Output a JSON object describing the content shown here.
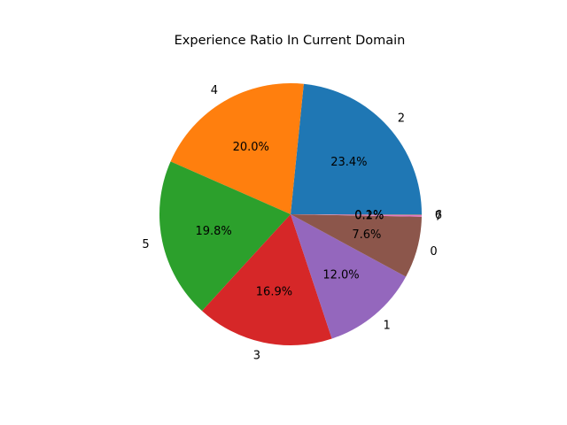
{
  "chart_data": {
    "type": "pie",
    "title": "Experience Ratio In Current Domain",
    "start_angle_deg": 0,
    "direction": "counterclockwise",
    "slices": [
      {
        "label": "2",
        "value": 23.4,
        "pct_label": "23.4%",
        "color": "#1f77b4"
      },
      {
        "label": "4",
        "value": 20.0,
        "pct_label": "20.0%",
        "color": "#ff7f0e"
      },
      {
        "label": "5",
        "value": 19.8,
        "pct_label": "19.8%",
        "color": "#2ca02c"
      },
      {
        "label": "3",
        "value": 16.9,
        "pct_label": "16.9%",
        "color": "#d62728"
      },
      {
        "label": "1",
        "value": 12.0,
        "pct_label": "12.0%",
        "color": "#9467bd"
      },
      {
        "label": "0",
        "value": 7.6,
        "pct_label": "7.6%",
        "color": "#8c564b"
      },
      {
        "label": "7",
        "value": 0.2,
        "pct_label": "0.2%",
        "color": "#e377c2"
      },
      {
        "label": "6",
        "value": 0.1,
        "pct_label": "0.1%",
        "color": "#7f7f7f"
      }
    ]
  }
}
